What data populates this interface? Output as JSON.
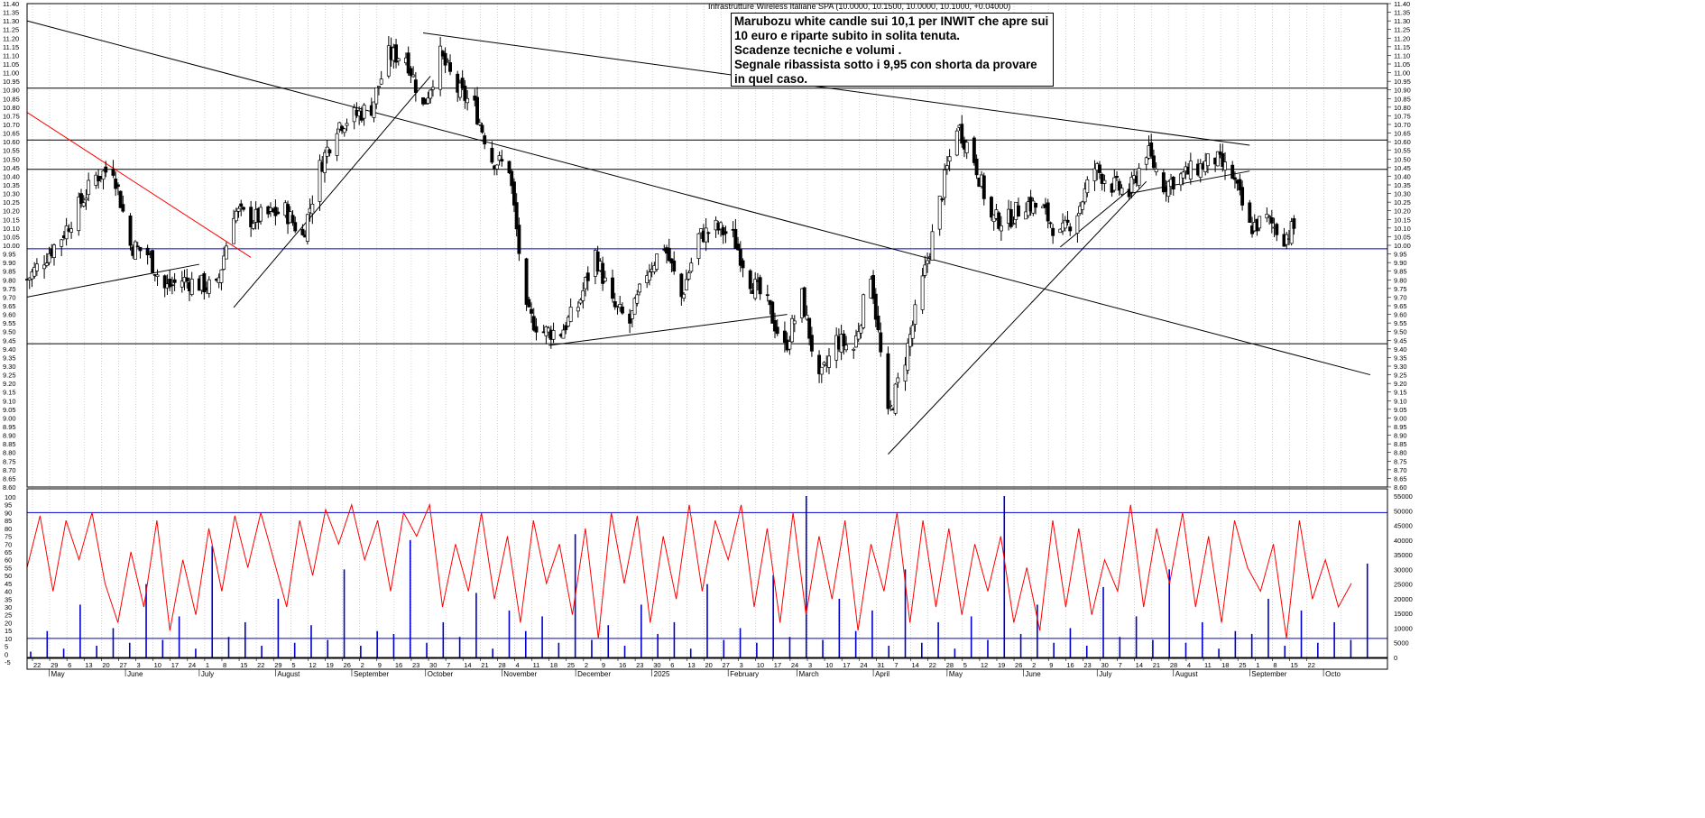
{
  "chart_data": [
    {
      "type": "candlestick",
      "title": "Infrastrutture Wireless Italiane SPA (10.0000, 10.1500, 10.0000, 10.1000, +0.04000)",
      "annotation": [
        "Marubozu white candle sui 10,1 per INWIT che apre sui",
        "10 euro e riparte subito in solita tenuta.",
        "Scadenze tecniche e volumi .",
        "Segnale ribassista sotto i 9,95 con shorta da provare",
        "in quel caso."
      ],
      "ylim": [
        8.6,
        11.4
      ],
      "grid": true,
      "x_tick_labels": [
        "22",
        "29",
        "6",
        "13",
        "20",
        "27",
        "3",
        "10",
        "17",
        "24",
        "1",
        "8",
        "15",
        "22",
        "29",
        "5",
        "12",
        "19",
        "26",
        "2",
        "9",
        "16",
        "23",
        "30",
        "7",
        "14",
        "21",
        "28",
        "4",
        "11",
        "18",
        "25",
        "2",
        "9",
        "16",
        "23",
        "30",
        "6",
        "13",
        "20",
        "27",
        "3",
        "10",
        "17",
        "24",
        "3",
        "10",
        "17",
        "24",
        "31",
        "7",
        "14",
        "22",
        "28",
        "5",
        "12",
        "19",
        "26",
        "2",
        "9",
        "16",
        "23",
        "30",
        "7",
        "14",
        "21",
        "28",
        "4",
        "11",
        "18",
        "25",
        "1",
        "8",
        "15",
        "22"
      ],
      "month_labels": [
        "May",
        "June",
        "July",
        "August",
        "September",
        "October",
        "November",
        "December",
        "2025",
        "February",
        "March",
        "April",
        "May",
        "June",
        "July",
        "August",
        "September",
        "Octo"
      ],
      "ohlc_start_date": "2024-04-22",
      "ohlc_end_date": "2025-09-19",
      "close_points": [
        {
          "x": "2024-04-22",
          "y": 9.8
        },
        {
          "x": "2024-05-06",
          "y": 10.05
        },
        {
          "x": "2024-05-20",
          "y": 10.4
        },
        {
          "x": "2024-05-27",
          "y": 10.45
        },
        {
          "x": "2024-06-03",
          "y": 10.0
        },
        {
          "x": "2024-06-10",
          "y": 9.95
        },
        {
          "x": "2024-06-17",
          "y": 9.75
        },
        {
          "x": "2024-06-24",
          "y": 9.8
        },
        {
          "x": "2024-07-08",
          "y": 9.75
        },
        {
          "x": "2024-07-15",
          "y": 10.2
        },
        {
          "x": "2024-07-22",
          "y": 10.15
        },
        {
          "x": "2024-08-05",
          "y": 10.2
        },
        {
          "x": "2024-08-12",
          "y": 10.05
        },
        {
          "x": "2024-08-19",
          "y": 10.45
        },
        {
          "x": "2024-08-26",
          "y": 10.7
        },
        {
          "x": "2024-09-09",
          "y": 10.8
        },
        {
          "x": "2024-09-16",
          "y": 11.1
        },
        {
          "x": "2024-09-23",
          "y": 11.1
        },
        {
          "x": "2024-09-30",
          "y": 10.8
        },
        {
          "x": "2024-10-07",
          "y": 11.1
        },
        {
          "x": "2024-10-14",
          "y": 10.9
        },
        {
          "x": "2024-10-21",
          "y": 10.8
        },
        {
          "x": "2024-10-28",
          "y": 10.5
        },
        {
          "x": "2024-11-04",
          "y": 10.45
        },
        {
          "x": "2024-11-11",
          "y": 9.6
        },
        {
          "x": "2024-11-18",
          "y": 9.5
        },
        {
          "x": "2024-11-25",
          "y": 9.5
        },
        {
          "x": "2024-12-02",
          "y": 9.65
        },
        {
          "x": "2024-12-09",
          "y": 9.95
        },
        {
          "x": "2024-12-16",
          "y": 9.65
        },
        {
          "x": "2024-12-23",
          "y": 9.55
        },
        {
          "x": "2024-12-30",
          "y": 9.85
        },
        {
          "x": "2025-01-06",
          "y": 10.0
        },
        {
          "x": "2025-01-13",
          "y": 9.7
        },
        {
          "x": "2025-01-20",
          "y": 10.05
        },
        {
          "x": "2025-01-27",
          "y": 10.1
        },
        {
          "x": "2025-02-03",
          "y": 10.05
        },
        {
          "x": "2025-02-10",
          "y": 9.8
        },
        {
          "x": "2025-02-17",
          "y": 9.65
        },
        {
          "x": "2025-02-24",
          "y": 9.4
        },
        {
          "x": "2025-03-03",
          "y": 9.7
        },
        {
          "x": "2025-03-10",
          "y": 9.2
        },
        {
          "x": "2025-03-17",
          "y": 9.45
        },
        {
          "x": "2025-03-24",
          "y": 9.4
        },
        {
          "x": "2025-03-31",
          "y": 9.85
        },
        {
          "x": "2025-04-07",
          "y": 9.0
        },
        {
          "x": "2025-04-14",
          "y": 9.35
        },
        {
          "x": "2025-04-22",
          "y": 9.85
        },
        {
          "x": "2025-04-28",
          "y": 10.25
        },
        {
          "x": "2025-05-05",
          "y": 10.7
        },
        {
          "x": "2025-05-12",
          "y": 10.5
        },
        {
          "x": "2025-05-19",
          "y": 10.15
        },
        {
          "x": "2025-05-26",
          "y": 10.15
        },
        {
          "x": "2025-06-02",
          "y": 10.25
        },
        {
          "x": "2025-06-09",
          "y": 10.2
        },
        {
          "x": "2025-06-16",
          "y": 10.05
        },
        {
          "x": "2025-06-23",
          "y": 10.2
        },
        {
          "x": "2025-06-30",
          "y": 10.45
        },
        {
          "x": "2025-07-07",
          "y": 10.35
        },
        {
          "x": "2025-07-14",
          "y": 10.3
        },
        {
          "x": "2025-07-21",
          "y": 10.55
        },
        {
          "x": "2025-07-28",
          "y": 10.35
        },
        {
          "x": "2025-08-04",
          "y": 10.4
        },
        {
          "x": "2025-08-11",
          "y": 10.45
        },
        {
          "x": "2025-08-18",
          "y": 10.5
        },
        {
          "x": "2025-08-25",
          "y": 10.4
        },
        {
          "x": "2025-09-01",
          "y": 10.1
        },
        {
          "x": "2025-09-08",
          "y": 10.15
        },
        {
          "x": "2025-09-15",
          "y": 10.05
        },
        {
          "x": "2025-09-19",
          "y": 10.1
        }
      ],
      "horizontal_lines": [
        {
          "y": 10.91,
          "color": "#000000"
        },
        {
          "y": 10.61,
          "color": "#000000"
        },
        {
          "y": 10.44,
          "color": "#000000"
        },
        {
          "y": 9.98,
          "color": "#0000CC"
        },
        {
          "y": 9.43,
          "color": "#000000"
        }
      ],
      "trendlines": [
        {
          "x1": "2024-04-22",
          "y1": 11.3,
          "x2": "2025-10-20",
          "y2": 9.25,
          "color": "#000000"
        },
        {
          "x1": "2024-04-22",
          "y1": 10.77,
          "x2": "2024-07-22",
          "y2": 9.93,
          "color": "#FF0000"
        },
        {
          "x1": "2024-04-22",
          "y1": 9.7,
          "x2": "2024-07-01",
          "y2": 9.89,
          "color": "#000000"
        },
        {
          "x1": "2024-07-15",
          "y1": 9.64,
          "x2": "2024-10-03",
          "y2": 10.98,
          "color": "#000000"
        },
        {
          "x1": "2024-09-30",
          "y1": 11.23,
          "x2": "2025-09-01",
          "y2": 10.58,
          "color": "#000000"
        },
        {
          "x1": "2024-11-20",
          "y1": 9.42,
          "x2": "2025-02-25",
          "y2": 9.6,
          "color": "#000000"
        },
        {
          "x1": "2025-04-07",
          "y1": 8.79,
          "x2": "2025-07-21",
          "y2": 10.37,
          "color": "#000000"
        },
        {
          "x1": "2025-06-16",
          "y1": 9.99,
          "x2": "2025-07-14",
          "y2": 10.32,
          "color": "#000000"
        },
        {
          "x1": "2025-07-14",
          "y1": 10.3,
          "x2": "2025-09-01",
          "y2": 10.43,
          "color": "#000000"
        }
      ],
      "colors": {
        "up_candle": "#FFFFFF",
        "down_candle": "#000000",
        "trendline_red": "#FF0000",
        "support_blue": "#0000CC"
      }
    },
    {
      "type": "line",
      "series": [
        {
          "values": [
            55,
            88,
            40,
            85,
            60,
            90,
            45,
            20,
            65,
            30,
            85,
            15,
            60,
            25,
            80,
            40,
            88,
            55,
            90,
            60,
            30,
            85,
            50,
            92,
            70,
            95,
            60,
            85,
            40,
            90,
            75,
            95,
            30,
            70,
            40,
            90,
            35,
            75,
            20,
            85,
            45,
            70,
            25,
            80,
            10,
            90,
            45,
            88,
            20,
            75,
            35,
            95,
            40,
            85,
            60,
            95,
            30,
            80,
            20,
            90,
            25,
            75,
            35,
            85,
            15,
            70,
            40,
            90,
            20,
            85,
            30,
            80,
            25,
            70,
            40,
            75,
            20,
            55,
            15,
            85,
            30,
            80,
            25,
            60,
            40,
            95,
            30,
            80,
            45,
            90,
            30,
            75,
            20,
            85,
            55,
            40,
            70,
            10,
            85,
            35,
            60,
            30,
            45
          ]
        }
      ],
      "ylim": [
        -5,
        100
      ],
      "y_ticks": [
        100,
        95,
        90,
        85,
        80,
        75,
        70,
        65,
        60,
        55,
        50,
        45,
        40,
        35,
        30,
        25,
        20,
        15,
        10,
        5,
        0,
        -5
      ],
      "horizontal_lines": [
        90,
        10
      ],
      "color": "#FF0000"
    },
    {
      "type": "bar",
      "values": [
        2000,
        9000,
        3000,
        18000,
        4000,
        10000,
        5000,
        25000,
        6000,
        14000,
        3000,
        38000,
        7000,
        12000,
        4000,
        20000,
        5000,
        11000,
        6000,
        30000,
        4000,
        9000,
        8000,
        40000,
        5000,
        12000,
        7000,
        22000,
        3000,
        16000,
        9000,
        14000,
        5000,
        42000,
        6000,
        11000,
        4000,
        18000,
        8000,
        12000,
        3000,
        25000,
        6000,
        10000,
        5000,
        28000,
        7000,
        55000,
        6000,
        20000,
        9000,
        16000,
        4000,
        30000,
        5000,
        12000,
        3000,
        14000,
        6000,
        55000,
        8000,
        18000,
        5000,
        10000,
        4000,
        24000,
        7000,
        14000,
        6000,
        30000,
        5000,
        12000,
        3000,
        9000,
        8000,
        20000,
        4000,
        16000,
        5000,
        12000,
        6000,
        32000
      ],
      "ylim": [
        0,
        55000
      ],
      "y_ticks": [
        "55000",
        "50000",
        "45000",
        "40000",
        "35000",
        "30000",
        "25000",
        "20000",
        "15000",
        "10000",
        "5000",
        "0"
      ],
      "color": "#0000CC"
    }
  ]
}
